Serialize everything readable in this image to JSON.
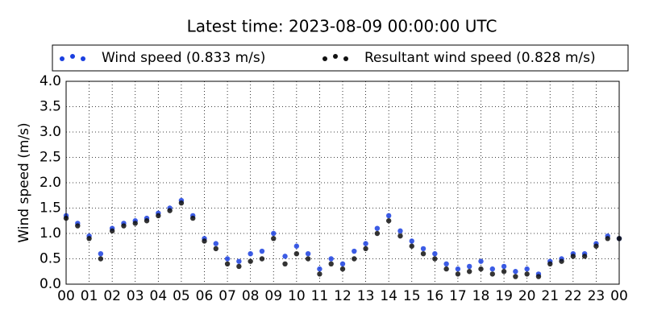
{
  "chart_data": {
    "type": "scatter",
    "title": "Latest time: 2023-08-09 00:00:00 UTC",
    "y_label": "Wind speed (m/s)",
    "x": [
      0,
      0.5,
      1,
      1.5,
      2,
      2.5,
      3,
      3.5,
      4,
      4.5,
      5,
      5.5,
      6,
      6.5,
      7,
      7.5,
      8,
      8.5,
      9,
      9.5,
      10,
      10.5,
      11,
      11.5,
      12,
      12.5,
      13,
      13.5,
      14,
      14.5,
      15,
      15.5,
      16,
      16.5,
      17,
      17.5,
      18,
      18.5,
      19,
      19.5,
      20,
      20.5,
      21,
      21.5,
      22,
      22.5,
      23,
      23.5,
      24
    ],
    "series": [
      {
        "name": "Wind speed (0.833 m/s)",
        "color": "#1a3fe0",
        "values": [
          1.35,
          1.2,
          0.95,
          0.6,
          1.1,
          1.2,
          1.25,
          1.3,
          1.4,
          1.5,
          1.65,
          1.35,
          0.9,
          0.8,
          0.5,
          0.45,
          0.6,
          0.65,
          1.0,
          0.55,
          0.75,
          0.6,
          0.3,
          0.5,
          0.4,
          0.65,
          0.8,
          1.1,
          1.35,
          1.05,
          0.85,
          0.7,
          0.6,
          0.4,
          0.3,
          0.35,
          0.45,
          0.3,
          0.35,
          0.25,
          0.3,
          0.2,
          0.45,
          0.5,
          0.6,
          0.6,
          0.8,
          0.95,
          0.9
        ]
      },
      {
        "name": "Resultant wind speed (0.828 m/s)",
        "color": "#111111",
        "values": [
          1.3,
          1.15,
          0.9,
          0.5,
          1.05,
          1.15,
          1.2,
          1.25,
          1.35,
          1.45,
          1.6,
          1.3,
          0.85,
          0.7,
          0.4,
          0.35,
          0.45,
          0.5,
          0.9,
          0.4,
          0.6,
          0.5,
          0.2,
          0.4,
          0.3,
          0.5,
          0.7,
          1.0,
          1.25,
          0.95,
          0.75,
          0.6,
          0.5,
          0.3,
          0.2,
          0.25,
          0.3,
          0.2,
          0.25,
          0.15,
          0.2,
          0.15,
          0.4,
          0.45,
          0.55,
          0.55,
          0.75,
          0.9,
          0.9
        ]
      }
    ],
    "xlim": [
      0,
      24
    ],
    "xticks": [
      {
        "value": 0,
        "label": "00"
      },
      {
        "value": 1,
        "label": "01"
      },
      {
        "value": 2,
        "label": "02"
      },
      {
        "value": 3,
        "label": "03"
      },
      {
        "value": 4,
        "label": "04"
      },
      {
        "value": 5,
        "label": "05"
      },
      {
        "value": 6,
        "label": "06"
      },
      {
        "value": 7,
        "label": "07"
      },
      {
        "value": 8,
        "label": "08"
      },
      {
        "value": 9,
        "label": "09"
      },
      {
        "value": 10,
        "label": "10"
      },
      {
        "value": 11,
        "label": "11"
      },
      {
        "value": 12,
        "label": "12"
      },
      {
        "value": 13,
        "label": "13"
      },
      {
        "value": 14,
        "label": "14"
      },
      {
        "value": 15,
        "label": "15"
      },
      {
        "value": 16,
        "label": "16"
      },
      {
        "value": 17,
        "label": "17"
      },
      {
        "value": 18,
        "label": "18"
      },
      {
        "value": 19,
        "label": "19"
      },
      {
        "value": 20,
        "label": "20"
      },
      {
        "value": 21,
        "label": "21"
      },
      {
        "value": 22,
        "label": "22"
      },
      {
        "value": 23,
        "label": "23"
      },
      {
        "value": 24,
        "label": "00"
      }
    ],
    "ylim": [
      0,
      4
    ],
    "yticks": [
      {
        "value": 0,
        "label": "0.0"
      },
      {
        "value": 0.5,
        "label": "0.5"
      },
      {
        "value": 1,
        "label": "1.0"
      },
      {
        "value": 1.5,
        "label": "1.5"
      },
      {
        "value": 2,
        "label": "2.0"
      },
      {
        "value": 2.5,
        "label": "2.5"
      },
      {
        "value": 3,
        "label": "3.0"
      },
      {
        "value": 3.5,
        "label": "3.5"
      },
      {
        "value": 4,
        "label": "4.0"
      }
    ],
    "grid": true
  }
}
